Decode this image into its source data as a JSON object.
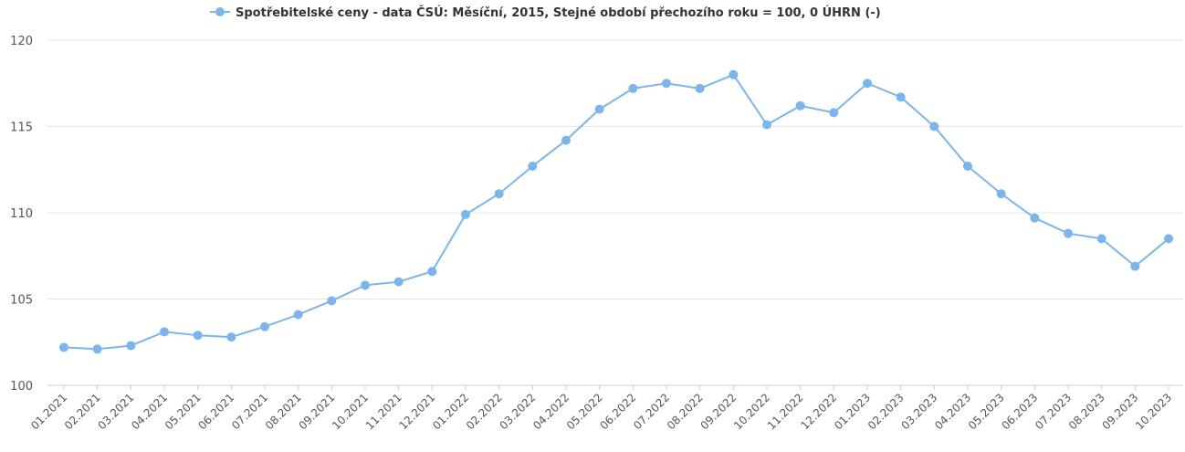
{
  "chart_data": {
    "type": "line",
    "legend": {
      "placement": "top-center",
      "label": "Spotřebitelské ceny - data ČSÚ: Měsíční, 2015, Stejné období přechozího roku = 100, 0 ÚHRN (-)"
    },
    "colors": {
      "series": "#7cb5ec",
      "grid": "#e6e6e6",
      "text": "#333333"
    },
    "grid": true,
    "ylim": [
      100,
      120
    ],
    "yticks": [
      "100",
      "105",
      "110",
      "115",
      "120"
    ],
    "categories": [
      "01.2021",
      "02.2021",
      "03.2021",
      "04.2021",
      "05.2021",
      "06.2021",
      "07.2021",
      "08.2021",
      "09.2021",
      "10.2021",
      "11.2021",
      "12.2021",
      "01.2022",
      "02.2022",
      "03.2022",
      "04.2022",
      "05.2022",
      "06.2022",
      "07.2022",
      "08.2022",
      "09.2022",
      "10.2022",
      "11.2022",
      "12.2022",
      "01.2023",
      "02.2023",
      "03.2023",
      "04.2023",
      "05.2023",
      "06.2023",
      "07.2023",
      "08.2023",
      "09.2023",
      "10.2023"
    ],
    "series": [
      {
        "name": "Spotřebitelské ceny - data ČSÚ: Měsíční, 2015, Stejné období přechozího roku = 100, 0 ÚHRN (-)",
        "values": [
          102.2,
          102.1,
          102.3,
          103.1,
          102.9,
          102.8,
          103.4,
          104.1,
          104.9,
          105.8,
          106.0,
          106.6,
          109.9,
          111.1,
          112.7,
          114.2,
          116.0,
          117.2,
          117.5,
          117.2,
          118.0,
          115.1,
          116.2,
          115.8,
          117.5,
          116.7,
          115.0,
          112.7,
          111.1,
          109.7,
          108.8,
          108.5,
          106.9,
          108.5
        ]
      }
    ]
  }
}
